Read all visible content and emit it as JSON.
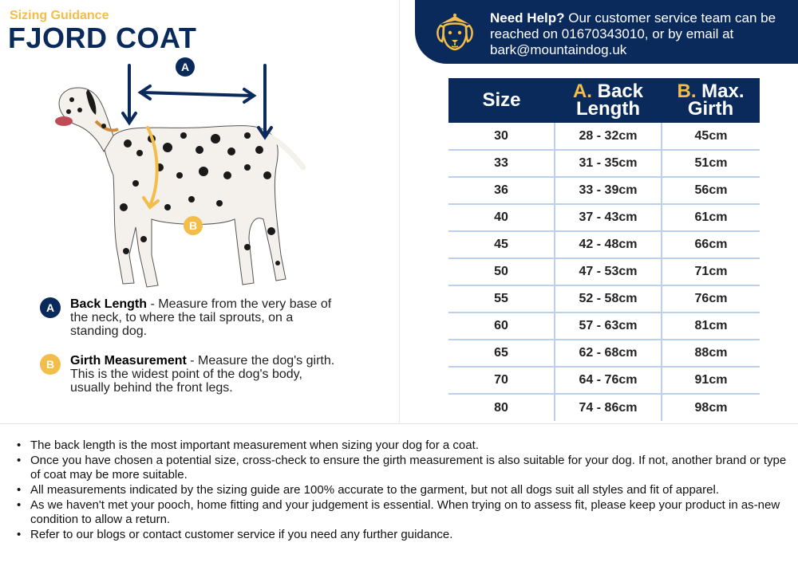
{
  "header": {
    "subtitle": "Sizing Guidance",
    "title": "FJORD COAT"
  },
  "help": {
    "lead": "Need Help?",
    "text": " Our customer service team can be reached on 01670343010, or by email at bark@mountaindog.uk"
  },
  "diagram": {
    "label_a": "A",
    "label_b": "B"
  },
  "legend": [
    {
      "badge": "A",
      "term": "Back Length",
      "desc": " - Measure from the very base of the neck, to where the tail sprouts, on a standing dog."
    },
    {
      "badge": "B",
      "term": "Girth Measurement",
      "desc": " - Measure the dog's girth. This is the widest point of the dog's body, usually behind the front legs."
    }
  ],
  "table": {
    "headers": {
      "size": "Size",
      "back_prefix": "A.",
      "back_line1": "Back",
      "back_line2": "Length",
      "girth_prefix": "B.",
      "girth_line1": "Max.",
      "girth_line2": "Girth"
    },
    "rows": [
      {
        "size": "30",
        "back": "28 - 32cm",
        "girth": "45cm"
      },
      {
        "size": "33",
        "back": "31 - 35cm",
        "girth": "51cm"
      },
      {
        "size": "36",
        "back": "33 - 39cm",
        "girth": "56cm"
      },
      {
        "size": "40",
        "back": "37 - 43cm",
        "girth": "61cm"
      },
      {
        "size": "45",
        "back": "42 - 48cm",
        "girth": "66cm"
      },
      {
        "size": "50",
        "back": "47 - 53cm",
        "girth": "71cm"
      },
      {
        "size": "55",
        "back": "52 - 58cm",
        "girth": "76cm"
      },
      {
        "size": "60",
        "back": "57 - 63cm",
        "girth": "81cm"
      },
      {
        "size": "65",
        "back": "62 - 68cm",
        "girth": "88cm"
      },
      {
        "size": "70",
        "back": "64 - 76cm",
        "girth": "91cm"
      },
      {
        "size": "80",
        "back": "74 - 86cm",
        "girth": "98cm"
      }
    ]
  },
  "notes": [
    "The back length is the most important measurement when sizing your dog for a coat.",
    "Once you have chosen a potential size, cross-check to ensure the girth measurement is also suitable for your dog. If not, another brand or type of coat may be more suitable.",
    "All measurements indicated by the sizing guide are 100% accurate to the garment, but not all dogs suit all styles and fit of apparel.",
    "As we haven't met your pooch, home fitting and your judgement is essential. When trying on to assess fit, please keep your product in as-new condition to allow a return.",
    "Refer to our blogs or contact customer service if you need any further guidance."
  ],
  "colors": {
    "navy": "#0b2a5c",
    "gold": "#f3bd4a",
    "grid": "#bcd0ec"
  },
  "icons": {
    "logo": "dog-face-logo-icon",
    "diagram": "dalmatian-measurement-illustration"
  }
}
